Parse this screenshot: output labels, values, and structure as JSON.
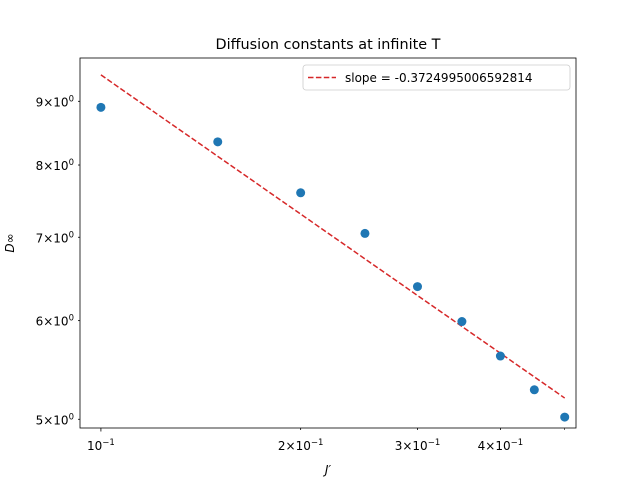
{
  "chart_data": {
    "type": "scatter",
    "title": "Diffusion constants at infinite T",
    "xlabel": "J′",
    "ylabel": "D∞",
    "xscale": "log",
    "yscale": "log",
    "xlim": [
      0.093,
      0.52
    ],
    "ylim": [
      4.92,
      9.75
    ],
    "grid": false,
    "legend_position": "top-right",
    "x_ticks": [
      {
        "base": "10",
        "exp": "−1",
        "value": 0.1
      },
      {
        "base": "2×10",
        "exp": "−1",
        "value": 0.2
      },
      {
        "base": "3×10",
        "exp": "−1",
        "value": 0.3
      },
      {
        "base": "4×10",
        "exp": "−1",
        "value": 0.4
      }
    ],
    "y_ticks": [
      {
        "base": "5×10",
        "exp": "0",
        "value": 5
      },
      {
        "base": "6×10",
        "exp": "0",
        "value": 6
      },
      {
        "base": "7×10",
        "exp": "0",
        "value": 7
      },
      {
        "base": "8×10",
        "exp": "0",
        "value": 8
      },
      {
        "base": "9×10",
        "exp": "0",
        "value": 9
      }
    ],
    "series": [
      {
        "kind": "scatter",
        "color": "#1f77b4",
        "x": [
          0.1,
          0.15,
          0.2,
          0.25,
          0.3,
          0.35,
          0.4,
          0.45,
          0.5
        ],
        "y": [
          8.9,
          8.35,
          7.6,
          7.05,
          6.39,
          5.99,
          5.62,
          5.28,
          5.02
        ]
      },
      {
        "kind": "line",
        "name": "slope = -0.3724995006592814",
        "color": "#d62728",
        "dashed": true,
        "x": [
          0.1,
          0.5
        ],
        "y": [
          9.45,
          5.2
        ]
      }
    ]
  }
}
